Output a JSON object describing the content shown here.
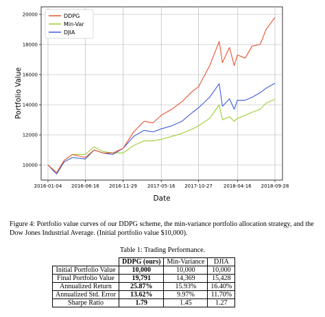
{
  "chart_data": {
    "type": "line",
    "xlabel": "Date",
    "ylabel": "Portfolio Value",
    "x_ticks": [
      "2016-01-04",
      "2016-06-16",
      "2016-11-29",
      "2017-05-16",
      "2017-10-27",
      "2018-04-16",
      "2018-09-28"
    ],
    "y_ticks": [
      "10000",
      "12000",
      "14000",
      "16000",
      "18000",
      "20000"
    ],
    "ylim": [
      9000,
      20500
    ],
    "grid": true,
    "legend_position": "top-left",
    "series": [
      {
        "name": "DDPG",
        "color": "#e8502e",
        "x": [
          "2016-01-04",
          "2016-02-11",
          "2016-03-15",
          "2016-04-20",
          "2016-06-16",
          "2016-07-25",
          "2016-09-01",
          "2016-10-15",
          "2016-11-29",
          "2017-01-15",
          "2017-03-01",
          "2017-04-10",
          "2017-05-16",
          "2017-07-01",
          "2017-08-15",
          "2017-10-01",
          "2017-10-27",
          "2017-12-15",
          "2018-01-26",
          "2018-02-09",
          "2018-03-12",
          "2018-04-02",
          "2018-04-16",
          "2018-05-20",
          "2018-06-20",
          "2018-07-25",
          "2018-08-20",
          "2018-09-28"
        ],
        "values": [
          10000,
          9500,
          10300,
          10700,
          10500,
          11000,
          10800,
          10800,
          11100,
          12200,
          12900,
          12800,
          13300,
          13700,
          14200,
          14900,
          15200,
          16600,
          18200,
          16800,
          17800,
          16600,
          17300,
          17100,
          17900,
          18000,
          19000,
          19791
        ]
      },
      {
        "name": "Min-Var",
        "color": "#9acd32",
        "x": [
          "2016-01-04",
          "2016-02-11",
          "2016-03-15",
          "2016-04-20",
          "2016-06-16",
          "2016-07-25",
          "2016-09-01",
          "2016-10-15",
          "2016-11-29",
          "2017-01-15",
          "2017-03-01",
          "2017-04-10",
          "2017-05-16",
          "2017-07-01",
          "2017-08-15",
          "2017-10-01",
          "2017-10-27",
          "2017-12-15",
          "2018-01-26",
          "2018-02-09",
          "2018-03-12",
          "2018-04-02",
          "2018-04-16",
          "2018-05-20",
          "2018-06-20",
          "2018-07-25",
          "2018-08-20",
          "2018-09-28"
        ],
        "values": [
          10000,
          9500,
          10300,
          10700,
          10700,
          11200,
          10900,
          10800,
          10800,
          11300,
          11600,
          11600,
          11700,
          11900,
          12100,
          12400,
          12600,
          13100,
          14000,
          13000,
          13200,
          12900,
          13100,
          13300,
          13500,
          13700,
          14100,
          14369
        ]
      },
      {
        "name": "DJIA",
        "color": "#3b5bd6",
        "x": [
          "2016-01-04",
          "2016-02-11",
          "2016-03-15",
          "2016-04-20",
          "2016-06-16",
          "2016-07-25",
          "2016-09-01",
          "2016-10-15",
          "2016-11-29",
          "2017-01-15",
          "2017-03-01",
          "2017-04-10",
          "2017-05-16",
          "2017-07-01",
          "2017-08-15",
          "2017-10-01",
          "2017-10-27",
          "2017-12-15",
          "2018-01-26",
          "2018-02-09",
          "2018-03-12",
          "2018-04-02",
          "2018-04-16",
          "2018-05-20",
          "2018-06-20",
          "2018-07-25",
          "2018-08-20",
          "2018-09-28"
        ],
        "values": [
          10000,
          9400,
          10200,
          10500,
          10400,
          11000,
          10800,
          10700,
          11100,
          11900,
          12300,
          12200,
          12400,
          12600,
          12900,
          13500,
          13800,
          14500,
          15400,
          13900,
          14400,
          13700,
          14300,
          14300,
          14500,
          14800,
          15100,
          15428
        ]
      }
    ]
  },
  "caption": "Figure 4: Portfolio value curves of our DDPG scheme, the min-variance portfolio allocation strategy, and the Dow Jones Industrial Average. (Initial portfolio value $10,000).",
  "table": {
    "title": "Table 1: Trading Performance.",
    "headers": [
      "DDPG (ours)",
      "Min-Variance",
      "DJIA"
    ],
    "rows": [
      {
        "label": "Initial Portfolio Value",
        "values": [
          "10,000",
          "10,000",
          "10,000"
        ]
      },
      {
        "label": "Final Portfolio Value",
        "values": [
          "19,791",
          "14,369",
          "15,428"
        ]
      },
      {
        "label": "Annualized Return",
        "values": [
          "25.87%",
          "15.93%",
          "16.40%"
        ]
      },
      {
        "label": "Annualized Std. Error",
        "values": [
          "13.62%",
          "9.97%",
          "11.70%"
        ]
      },
      {
        "label": "Sharpe Ratio",
        "values": [
          "1.79",
          "1.45",
          "1.27"
        ]
      }
    ]
  }
}
